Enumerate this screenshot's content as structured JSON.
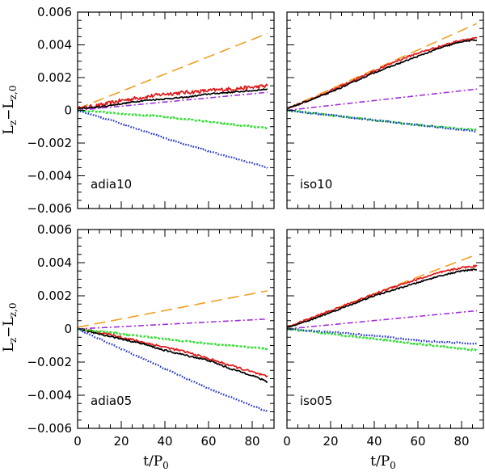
{
  "chart_data": {
    "type": "line",
    "layout": "2x2 grid, shared axes",
    "xlabel": "t/P",
    "xlabel_sub": "0",
    "ylabel_parts": {
      "main": "L",
      "sub1": "z",
      "minus": "−",
      "main2": "L",
      "sub2": "z,0"
    },
    "xlim": [
      0,
      90
    ],
    "ylim": [
      -0.006,
      0.006
    ],
    "x_ticks": [
      0,
      20,
      40,
      60,
      80
    ],
    "x_tick_labels": [
      "0",
      "20",
      "40",
      "60",
      "80"
    ],
    "y_ticks": [
      -0.006,
      -0.004,
      -0.002,
      0,
      0.002,
      0.004,
      0.006
    ],
    "y_tick_labels": [
      "−0.006",
      "−0.004",
      "−0.002",
      "0",
      "0.002",
      "0.004",
      "0.006"
    ],
    "series_styles": [
      {
        "name": "orange-long-dash",
        "color": "#f0a020",
        "dash": "14 7"
      },
      {
        "name": "red-solid",
        "color": "#e01818",
        "dash": ""
      },
      {
        "name": "black-solid",
        "color": "#000000",
        "dash": ""
      },
      {
        "name": "purple-dash-dot",
        "color": "#a030d8",
        "dash": "7 3 2 3"
      },
      {
        "name": "green-dotted",
        "color": "#30e030",
        "dash": "3 2"
      },
      {
        "name": "blue-dotted",
        "color": "#2030d0",
        "dash": "1.5 2"
      }
    ],
    "panels": [
      {
        "label": "adia10",
        "series": [
          {
            "name": "orange-long-dash",
            "x": [
              0,
              87
            ],
            "y": [
              0.0001,
              0.0047
            ],
            "noise": 0
          },
          {
            "name": "red-solid",
            "x": [
              0,
              10,
              20,
              30,
              40,
              50,
              60,
              70,
              80,
              87
            ],
            "y": [
              0.0001,
              0.0003,
              0.0006,
              0.0008,
              0.001,
              0.0011,
              0.0012,
              0.0013,
              0.0014,
              0.0015
            ],
            "noise": 0.00012
          },
          {
            "name": "black-solid",
            "x": [
              0,
              10,
              20,
              30,
              40,
              50,
              60,
              70,
              80,
              87
            ],
            "y": [
              0.0001,
              0.0002,
              0.0004,
              0.0006,
              0.0007,
              0.0008,
              0.001,
              0.0011,
              0.0012,
              0.0013
            ],
            "noise": 4e-05
          },
          {
            "name": "purple-dash-dot",
            "x": [
              0,
              87
            ],
            "y": [
              0.0,
              0.0011
            ],
            "noise": 0
          },
          {
            "name": "green-dotted",
            "x": [
              0,
              20,
              40,
              60,
              87
            ],
            "y": [
              0.0,
              -0.0002,
              -0.0004,
              -0.0007,
              -0.0011
            ],
            "noise": 4e-05
          },
          {
            "name": "blue-dotted",
            "x": [
              0,
              20,
              40,
              60,
              87
            ],
            "y": [
              0.0,
              -0.0008,
              -0.0017,
              -0.0025,
              -0.0035
            ],
            "noise": 3e-05
          }
        ]
      },
      {
        "label": "iso10",
        "series": [
          {
            "name": "orange-long-dash",
            "x": [
              0,
              87
            ],
            "y": [
              0.0001,
              0.0053
            ],
            "noise": 0
          },
          {
            "name": "red-solid",
            "x": [
              0,
              10,
              20,
              30,
              40,
              50,
              60,
              70,
              80,
              87
            ],
            "y": [
              0.0001,
              0.0006,
              0.0012,
              0.0018,
              0.0024,
              0.003,
              0.0035,
              0.0039,
              0.0043,
              0.0044
            ],
            "noise": 6e-05
          },
          {
            "name": "black-solid",
            "x": [
              0,
              10,
              20,
              30,
              40,
              50,
              60,
              70,
              80,
              87
            ],
            "y": [
              0.0001,
              0.0006,
              0.0011,
              0.0017,
              0.0023,
              0.0028,
              0.0033,
              0.0038,
              0.0042,
              0.0043
            ],
            "noise": 4e-05
          },
          {
            "name": "purple-dash-dot",
            "x": [
              0,
              87
            ],
            "y": [
              0.0,
              0.0013
            ],
            "noise": 0
          },
          {
            "name": "green-dotted",
            "x": [
              0,
              20,
              40,
              60,
              87
            ],
            "y": [
              0.0,
              -0.0003,
              -0.0006,
              -0.0009,
              -0.0012
            ],
            "noise": 4e-05
          },
          {
            "name": "blue-dotted",
            "x": [
              0,
              20,
              40,
              60,
              87
            ],
            "y": [
              0.0,
              -0.0003,
              -0.0006,
              -0.0009,
              -0.0013
            ],
            "noise": 3e-05
          }
        ]
      },
      {
        "label": "adia05",
        "series": [
          {
            "name": "orange-long-dash",
            "x": [
              0,
              87
            ],
            "y": [
              0.0001,
              0.0023
            ],
            "noise": 0
          },
          {
            "name": "red-solid",
            "x": [
              0,
              10,
              20,
              30,
              40,
              50,
              60,
              70,
              80,
              87
            ],
            "y": [
              0.0,
              -0.0002,
              -0.0005,
              -0.0008,
              -0.0011,
              -0.0014,
              -0.0018,
              -0.0022,
              -0.0026,
              -0.0029
            ],
            "noise": 7e-05
          },
          {
            "name": "black-solid",
            "x": [
              0,
              10,
              20,
              30,
              40,
              50,
              60,
              70,
              80,
              87
            ],
            "y": [
              0.0,
              -0.0003,
              -0.0006,
              -0.0009,
              -0.0013,
              -0.0016,
              -0.0019,
              -0.0024,
              -0.0028,
              -0.0032
            ],
            "noise": 5e-05
          },
          {
            "name": "purple-dash-dot",
            "x": [
              0,
              87
            ],
            "y": [
              0.0,
              0.0006
            ],
            "noise": 0
          },
          {
            "name": "green-dotted",
            "x": [
              0,
              20,
              40,
              60,
              87
            ],
            "y": [
              0.0,
              -0.0003,
              -0.0006,
              -0.0009,
              -0.0012
            ],
            "noise": 4e-05
          },
          {
            "name": "blue-dotted",
            "x": [
              0,
              20,
              40,
              60,
              87
            ],
            "y": [
              0.0,
              -0.0012,
              -0.0024,
              -0.0036,
              -0.005
            ],
            "noise": 3e-05
          }
        ]
      },
      {
        "label": "iso05",
        "series": [
          {
            "name": "orange-long-dash",
            "x": [
              0,
              87
            ],
            "y": [
              0.0001,
              0.0045
            ],
            "noise": 0
          },
          {
            "name": "red-solid",
            "x": [
              0,
              10,
              20,
              30,
              40,
              50,
              60,
              70,
              80,
              87
            ],
            "y": [
              0.0001,
              0.0006,
              0.0011,
              0.0016,
              0.0021,
              0.0026,
              0.003,
              0.0034,
              0.0037,
              0.0038
            ],
            "noise": 6e-05
          },
          {
            "name": "black-solid",
            "x": [
              0,
              10,
              20,
              30,
              40,
              50,
              60,
              70,
              80,
              87
            ],
            "y": [
              0.0001,
              0.0005,
              0.001,
              0.0015,
              0.002,
              0.0024,
              0.0028,
              0.0032,
              0.0035,
              0.0036
            ],
            "noise": 4e-05
          },
          {
            "name": "purple-dash-dot",
            "x": [
              0,
              87
            ],
            "y": [
              0.0,
              0.0011
            ],
            "noise": 0
          },
          {
            "name": "green-dotted",
            "x": [
              0,
              20,
              40,
              60,
              87
            ],
            "y": [
              0.0,
              -0.0003,
              -0.0006,
              -0.0009,
              -0.0013
            ],
            "noise": 4e-05
          },
          {
            "name": "blue-dotted",
            "x": [
              0,
              20,
              40,
              60,
              87
            ],
            "y": [
              0.0,
              -0.0002,
              -0.0004,
              -0.0007,
              -0.0009
            ],
            "noise": 3e-05
          }
        ]
      }
    ]
  }
}
